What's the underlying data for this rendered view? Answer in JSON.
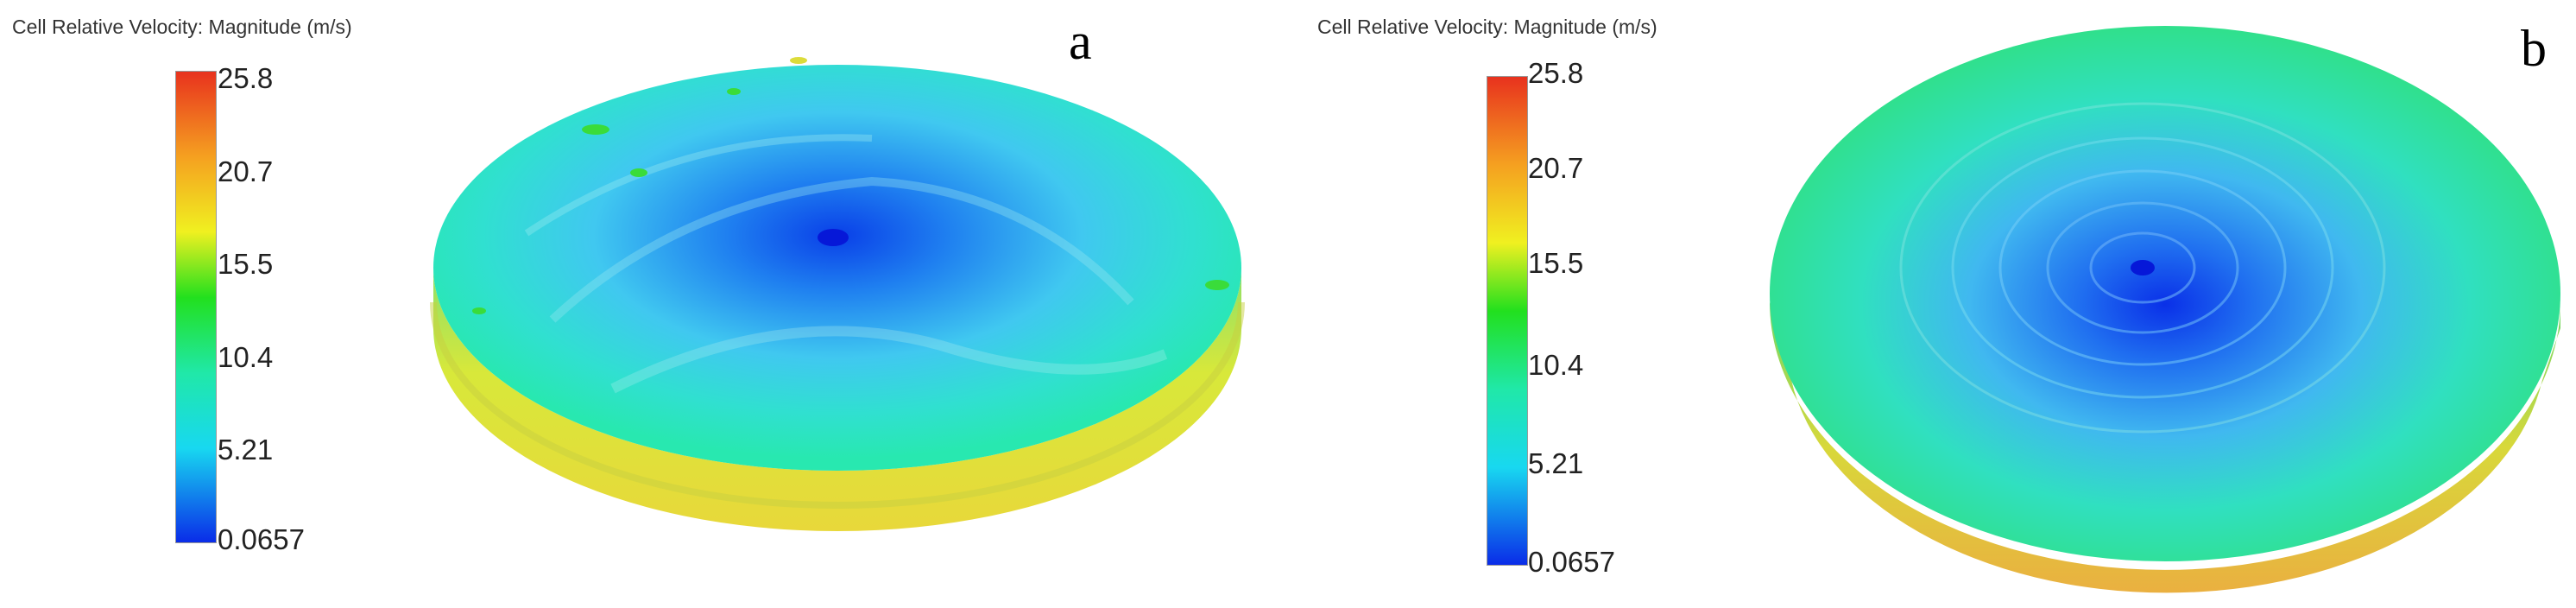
{
  "panels": [
    {
      "label": "a",
      "colorbar": {
        "title": "Cell Relative Velocity: Magnitude (m/s)",
        "ticks": [
          "25.8",
          "20.7",
          "15.5",
          "10.4",
          "5.21",
          "0.0657"
        ],
        "min": 0.0657,
        "max": 25.8
      }
    },
    {
      "label": "b",
      "colorbar": {
        "title": "Cell Relative Velocity: Magnitude (m/s)",
        "ticks": [
          "25.8",
          "20.7",
          "15.5",
          "10.4",
          "5.21",
          "0.0657"
        ],
        "min": 0.0657,
        "max": 25.8
      }
    }
  ],
  "colors": {
    "red": "#e8321e",
    "orange": "#f5a020",
    "yellow": "#f0f020",
    "green": "#22e01e",
    "cyan_green": "#20e8a8",
    "cyan": "#18d8f0",
    "blue": "#0a2ce8"
  }
}
